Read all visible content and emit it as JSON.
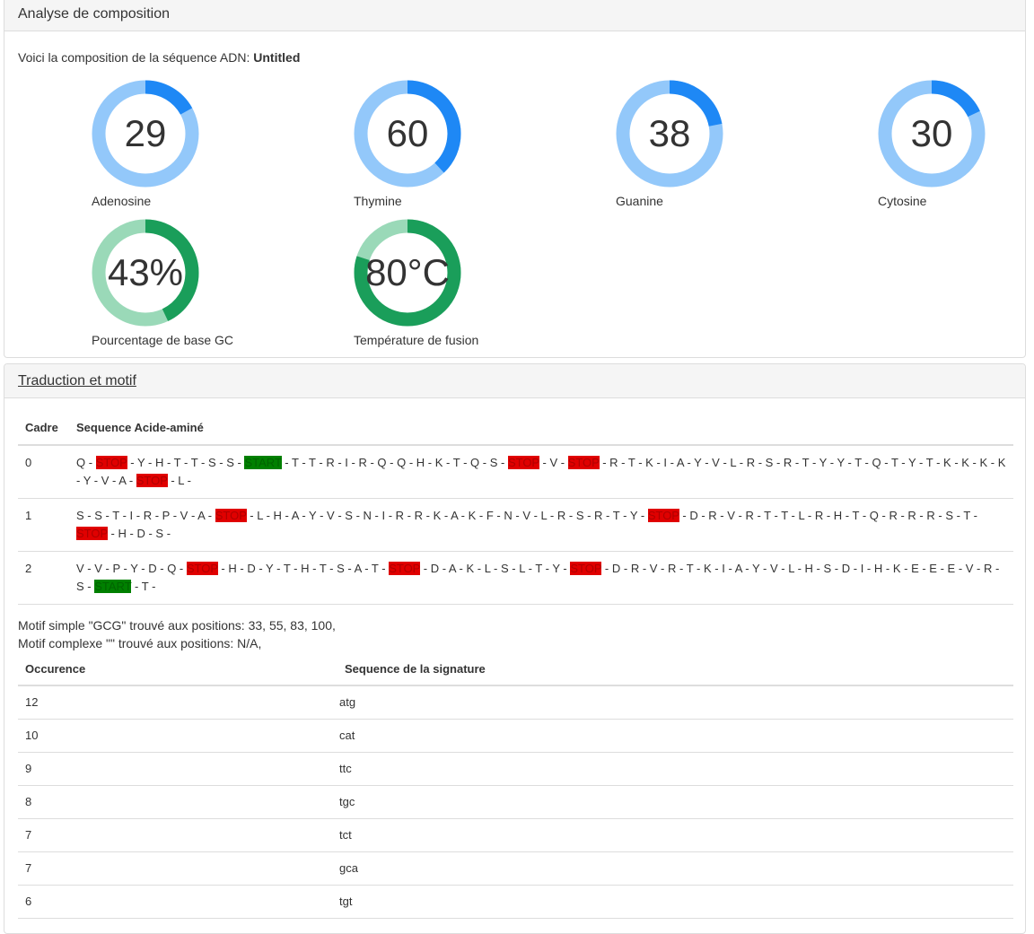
{
  "composition": {
    "heading": "Analyse de composition",
    "intro_prefix": "Voici la composition de la séquence ADN: ",
    "sequence_name": "Untitled",
    "gauges": [
      {
        "value_text": "29",
        "label": "Adenosine",
        "fraction": 0.17,
        "color": "#1e88f5",
        "track": "#93c8fa"
      },
      {
        "value_text": "60",
        "label": "Thymine",
        "fraction": 0.38,
        "color": "#1e88f5",
        "track": "#93c8fa"
      },
      {
        "value_text": "38",
        "label": "Guanine",
        "fraction": 0.22,
        "color": "#1e88f5",
        "track": "#93c8fa"
      },
      {
        "value_text": "30",
        "label": "Cytosine",
        "fraction": 0.18,
        "color": "#1e88f5",
        "track": "#93c8fa"
      },
      {
        "value_text": "43%",
        "label": "Pourcentage de base GC",
        "fraction": 0.43,
        "color": "#1a9e5a",
        "track": "#9ad9b8"
      },
      {
        "value_text": "80°C",
        "label": "Température de fusion",
        "fraction": 0.8,
        "color": "#1a9e5a",
        "track": "#9ad9b8"
      }
    ]
  },
  "translation": {
    "heading": "Traduction et motif",
    "columns": [
      "Cadre",
      "Sequence Acide-aminé"
    ],
    "frames": [
      {
        "cadre": "0",
        "seq": [
          "Q",
          "STOP",
          "Y",
          "H",
          "T",
          "T",
          "S",
          "S",
          "START",
          "T",
          "T",
          "R",
          "I",
          "R",
          "Q",
          "Q",
          "H",
          "K",
          "T",
          "Q",
          "S",
          "STOP",
          "V",
          "STOP",
          "R",
          "T",
          "K",
          "I",
          "A",
          "Y",
          "V",
          "L",
          "R",
          "S",
          "R",
          "T",
          "Y",
          "Y",
          "T",
          "Q",
          "T",
          "Y",
          "T",
          "K",
          "K",
          "K",
          "K",
          "Y",
          "V",
          "A",
          "STOP",
          "L"
        ]
      },
      {
        "cadre": "1",
        "seq": [
          "S",
          "S",
          "T",
          "I",
          "R",
          "P",
          "V",
          "A",
          "STOP",
          "L",
          "H",
          "A",
          "Y",
          "V",
          "S",
          "N",
          "I",
          "R",
          "R",
          "K",
          "A",
          "K",
          "F",
          "N",
          "V",
          "L",
          "R",
          "S",
          "R",
          "T",
          "Y",
          "STOP",
          "D",
          "R",
          "V",
          "R",
          "T",
          "T",
          "L",
          "R",
          "H",
          "T",
          "Q",
          "R",
          "R",
          "R",
          "S",
          "T",
          "STOP",
          "H",
          "D",
          "S"
        ]
      },
      {
        "cadre": "2",
        "seq": [
          "V",
          "V",
          "P",
          "Y",
          "D",
          "Q",
          "STOP",
          "H",
          "D",
          "Y",
          "T",
          "H",
          "T",
          "S",
          "A",
          "T",
          "STOP",
          "D",
          "A",
          "K",
          "L",
          "S",
          "L",
          "T",
          "Y",
          "STOP",
          "D",
          "R",
          "V",
          "R",
          "T",
          "K",
          "I",
          "A",
          "Y",
          "V",
          "L",
          "H",
          "S",
          "D",
          "I",
          "H",
          "K",
          "E",
          "E",
          "E",
          "V",
          "R",
          "S",
          "START",
          "T"
        ]
      }
    ],
    "motif_simple": "Motif simple \"GCG\" trouvé aux positions: 33, 55, 83, 100,",
    "motif_complexe": "Motif complexe \"\" trouvé aux positions: N/A,",
    "sig_columns": [
      "Occurence",
      "Sequence de la signature"
    ],
    "signatures": [
      {
        "occ": "12",
        "seq": "atg"
      },
      {
        "occ": "10",
        "seq": "cat"
      },
      {
        "occ": "9",
        "seq": "ttc"
      },
      {
        "occ": "8",
        "seq": "tgc"
      },
      {
        "occ": "7",
        "seq": "tct"
      },
      {
        "occ": "7",
        "seq": "gca"
      },
      {
        "occ": "6",
        "seq": "tgt"
      }
    ]
  }
}
